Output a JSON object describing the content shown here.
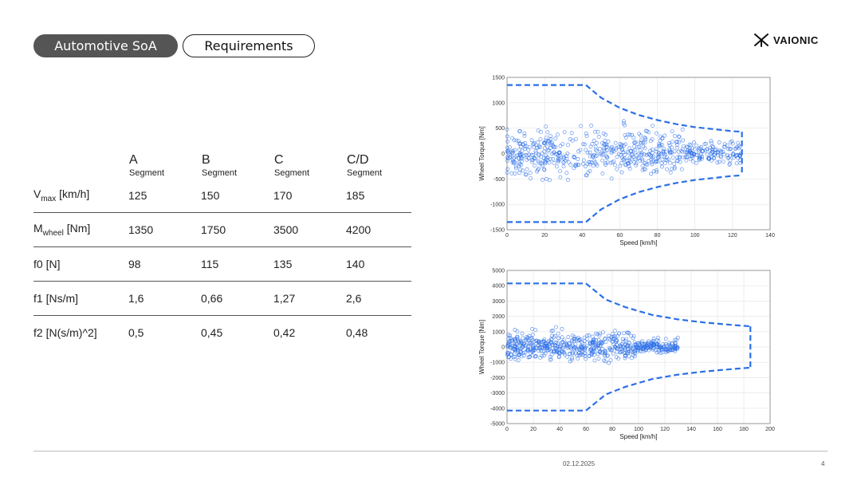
{
  "tabs": {
    "active": "Automotive SoA",
    "inactive": "Requirements"
  },
  "logo": {
    "text": "VAIONIC"
  },
  "table": {
    "headers": [
      {
        "letter": "A",
        "sub": "Segment"
      },
      {
        "letter": "B",
        "sub": "Segment"
      },
      {
        "letter": "C",
        "sub": "Segment"
      },
      {
        "letter": "C/D",
        "sub": "Segment"
      }
    ],
    "rows": [
      {
        "label_main": "V",
        "label_sub": "max",
        "label_rest": " [km/h]",
        "values": [
          "125",
          "150",
          "170",
          "185"
        ]
      },
      {
        "label_main": "M",
        "label_sub": "wheel",
        "label_rest": " [Nm]",
        "values": [
          "1350",
          "1750",
          "3500",
          "4200"
        ]
      },
      {
        "label_main": "f0 [N]",
        "label_sub": "",
        "label_rest": "",
        "values": [
          "98",
          "115",
          "135",
          "140"
        ]
      },
      {
        "label_main": "f1 [Ns/m]",
        "label_sub": "",
        "label_rest": "",
        "values": [
          "1,6",
          "0,66",
          "1,27",
          "2,6"
        ]
      },
      {
        "label_main": "f2 [N(s/m)^2]",
        "label_sub": "",
        "label_rest": "",
        "values": [
          "0,5",
          "0,45",
          "0,42",
          "0,48"
        ]
      }
    ]
  },
  "footer": {
    "date": "02.12.2025",
    "page": "4"
  },
  "chart_data": [
    {
      "type": "scatter",
      "xlabel": "Speed [km/h]",
      "ylabel": "Wheel Torque [Nm]",
      "xlim": [
        0,
        140
      ],
      "ylim": [
        -1500,
        1500
      ],
      "xticks": [
        "0",
        "20",
        "40",
        "60",
        "80",
        "100",
        "120",
        "140"
      ],
      "yticks": [
        "1500",
        "1000",
        "500",
        "0",
        "-500",
        "-1000",
        "-1500"
      ],
      "grid": true,
      "scatter_region": {
        "x_range": [
          0,
          125
        ],
        "y_range": [
          -600,
          700
        ]
      },
      "envelope_upper": [
        [
          0,
          1350
        ],
        [
          42,
          1350
        ],
        [
          50,
          1100
        ],
        [
          60,
          900
        ],
        [
          70,
          760
        ],
        [
          80,
          660
        ],
        [
          90,
          580
        ],
        [
          100,
          520
        ],
        [
          110,
          480
        ],
        [
          120,
          440
        ],
        [
          125,
          430
        ]
      ],
      "envelope_lower": [
        [
          0,
          -1350
        ],
        [
          42,
          -1350
        ],
        [
          50,
          -1100
        ],
        [
          60,
          -900
        ],
        [
          70,
          -760
        ],
        [
          80,
          -660
        ],
        [
          90,
          -580
        ],
        [
          100,
          -520
        ],
        [
          110,
          -480
        ],
        [
          120,
          -440
        ],
        [
          125,
          -430
        ]
      ],
      "color": "#2b6fe8"
    },
    {
      "type": "scatter",
      "xlabel": "Speed [km/h]",
      "ylabel": "Wheel Torque [Nm]",
      "xlim": [
        0,
        200
      ],
      "ylim": [
        -5000,
        5000
      ],
      "xticks": [
        "0",
        "20",
        "40",
        "60",
        "80",
        "100",
        "120",
        "140",
        "160",
        "180",
        "200"
      ],
      "yticks": [
        "5000",
        "4000",
        "3000",
        "2000",
        "1000",
        "0",
        "-1000",
        "-2000",
        "-3000",
        "-4000",
        "-5000"
      ],
      "grid": true,
      "scatter_region": {
        "x_range": [
          0,
          130
        ],
        "y_range": [
          -1200,
          1500
        ]
      },
      "envelope_upper": [
        [
          0,
          4150
        ],
        [
          60,
          4150
        ],
        [
          75,
          3100
        ],
        [
          90,
          2600
        ],
        [
          110,
          2100
        ],
        [
          130,
          1800
        ],
        [
          150,
          1600
        ],
        [
          170,
          1450
        ],
        [
          185,
          1350
        ]
      ],
      "envelope_lower": [
        [
          0,
          -4150
        ],
        [
          60,
          -4150
        ],
        [
          75,
          -3100
        ],
        [
          90,
          -2600
        ],
        [
          110,
          -2100
        ],
        [
          130,
          -1800
        ],
        [
          150,
          -1600
        ],
        [
          170,
          -1450
        ],
        [
          185,
          -1350
        ]
      ],
      "color": "#2b6fe8"
    }
  ]
}
